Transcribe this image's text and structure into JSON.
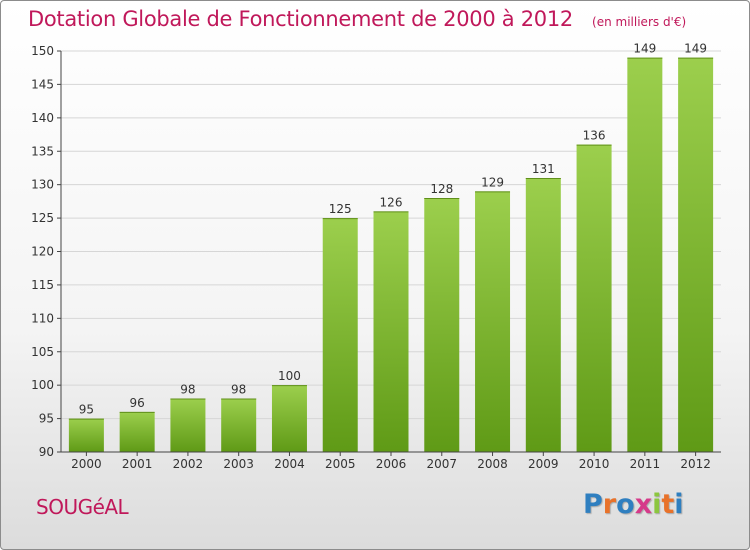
{
  "title": "Dotation Globale de Fonctionnement de 2000 à 2012",
  "unit_label": "(en milliers d'€)",
  "commune": "SOUGéAL",
  "logo": {
    "text": "Proxiti",
    "letter_colors": [
      "#2f7fc0",
      "#e8722a",
      "#2f7fc0",
      "#d63a8a",
      "#8cc63f",
      "#e8722a",
      "#2f7fc0"
    ]
  },
  "colors": {
    "title": "#c0185a",
    "bar_light": "#9ccf4d",
    "bar_dark": "#5f9a16",
    "axis": "#444444",
    "grid": "#d6d6d6"
  },
  "chart_data": {
    "type": "bar",
    "title": "Dotation Globale de Fonctionnement de 2000 à 2012",
    "xlabel": "",
    "ylabel": "",
    "categories": [
      "2000",
      "2001",
      "2002",
      "2003",
      "2004",
      "2005",
      "2006",
      "2007",
      "2008",
      "2009",
      "2010",
      "2011",
      "2012"
    ],
    "values": [
      95,
      96,
      98,
      98,
      100,
      125,
      126,
      128,
      129,
      131,
      136,
      149,
      149
    ],
    "ylim": [
      90,
      150
    ],
    "yticks": [
      90,
      95,
      100,
      105,
      110,
      115,
      120,
      125,
      130,
      135,
      140,
      145,
      150
    ],
    "data_labels": true,
    "grid": true
  }
}
